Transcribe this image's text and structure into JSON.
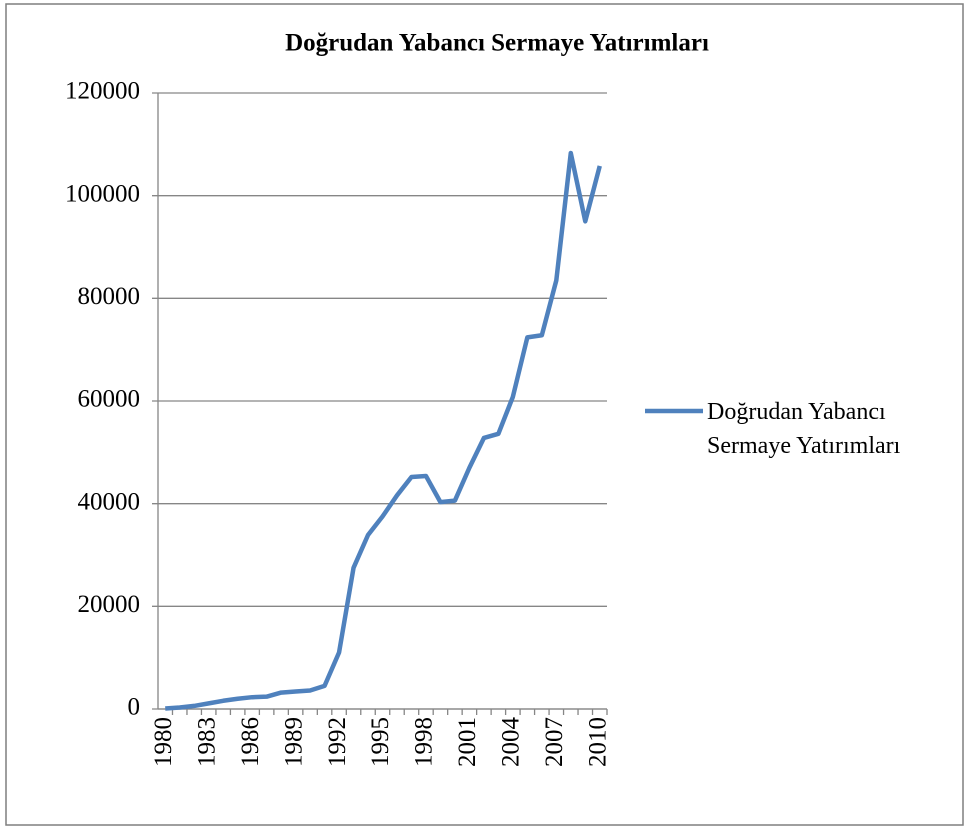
{
  "chart_data": {
    "type": "line",
    "title": "Doğrudan Yabancı Sermaye Yatırımları",
    "categories": [
      "1980",
      null,
      null,
      "1983",
      null,
      null,
      "1986",
      null,
      null,
      "1989",
      null,
      null,
      "1992",
      null,
      null,
      "1995",
      null,
      null,
      "1998",
      null,
      null,
      "2001",
      null,
      null,
      "2004",
      null,
      null,
      "2007",
      null,
      null,
      "2010"
    ],
    "series": [
      {
        "name": "Doğrudan Yabancı Sermaye Yatırımları",
        "color": "#4f81bd",
        "values": [
          100,
          300,
          600,
          1100,
          1600,
          2000,
          2300,
          2400,
          3200,
          3400,
          3600,
          4500,
          11000,
          27500,
          33900,
          37500,
          41600,
          45200,
          45400,
          40300,
          40600,
          47000,
          52800,
          53600,
          60800,
          72400,
          72800,
          83500,
          108300,
          95000,
          105800
        ]
      }
    ],
    "ylim": [
      0,
      120000
    ],
    "yticks": [
      0,
      20000,
      40000,
      60000,
      80000,
      100000,
      120000
    ],
    "grid": true,
    "legend": "right"
  }
}
